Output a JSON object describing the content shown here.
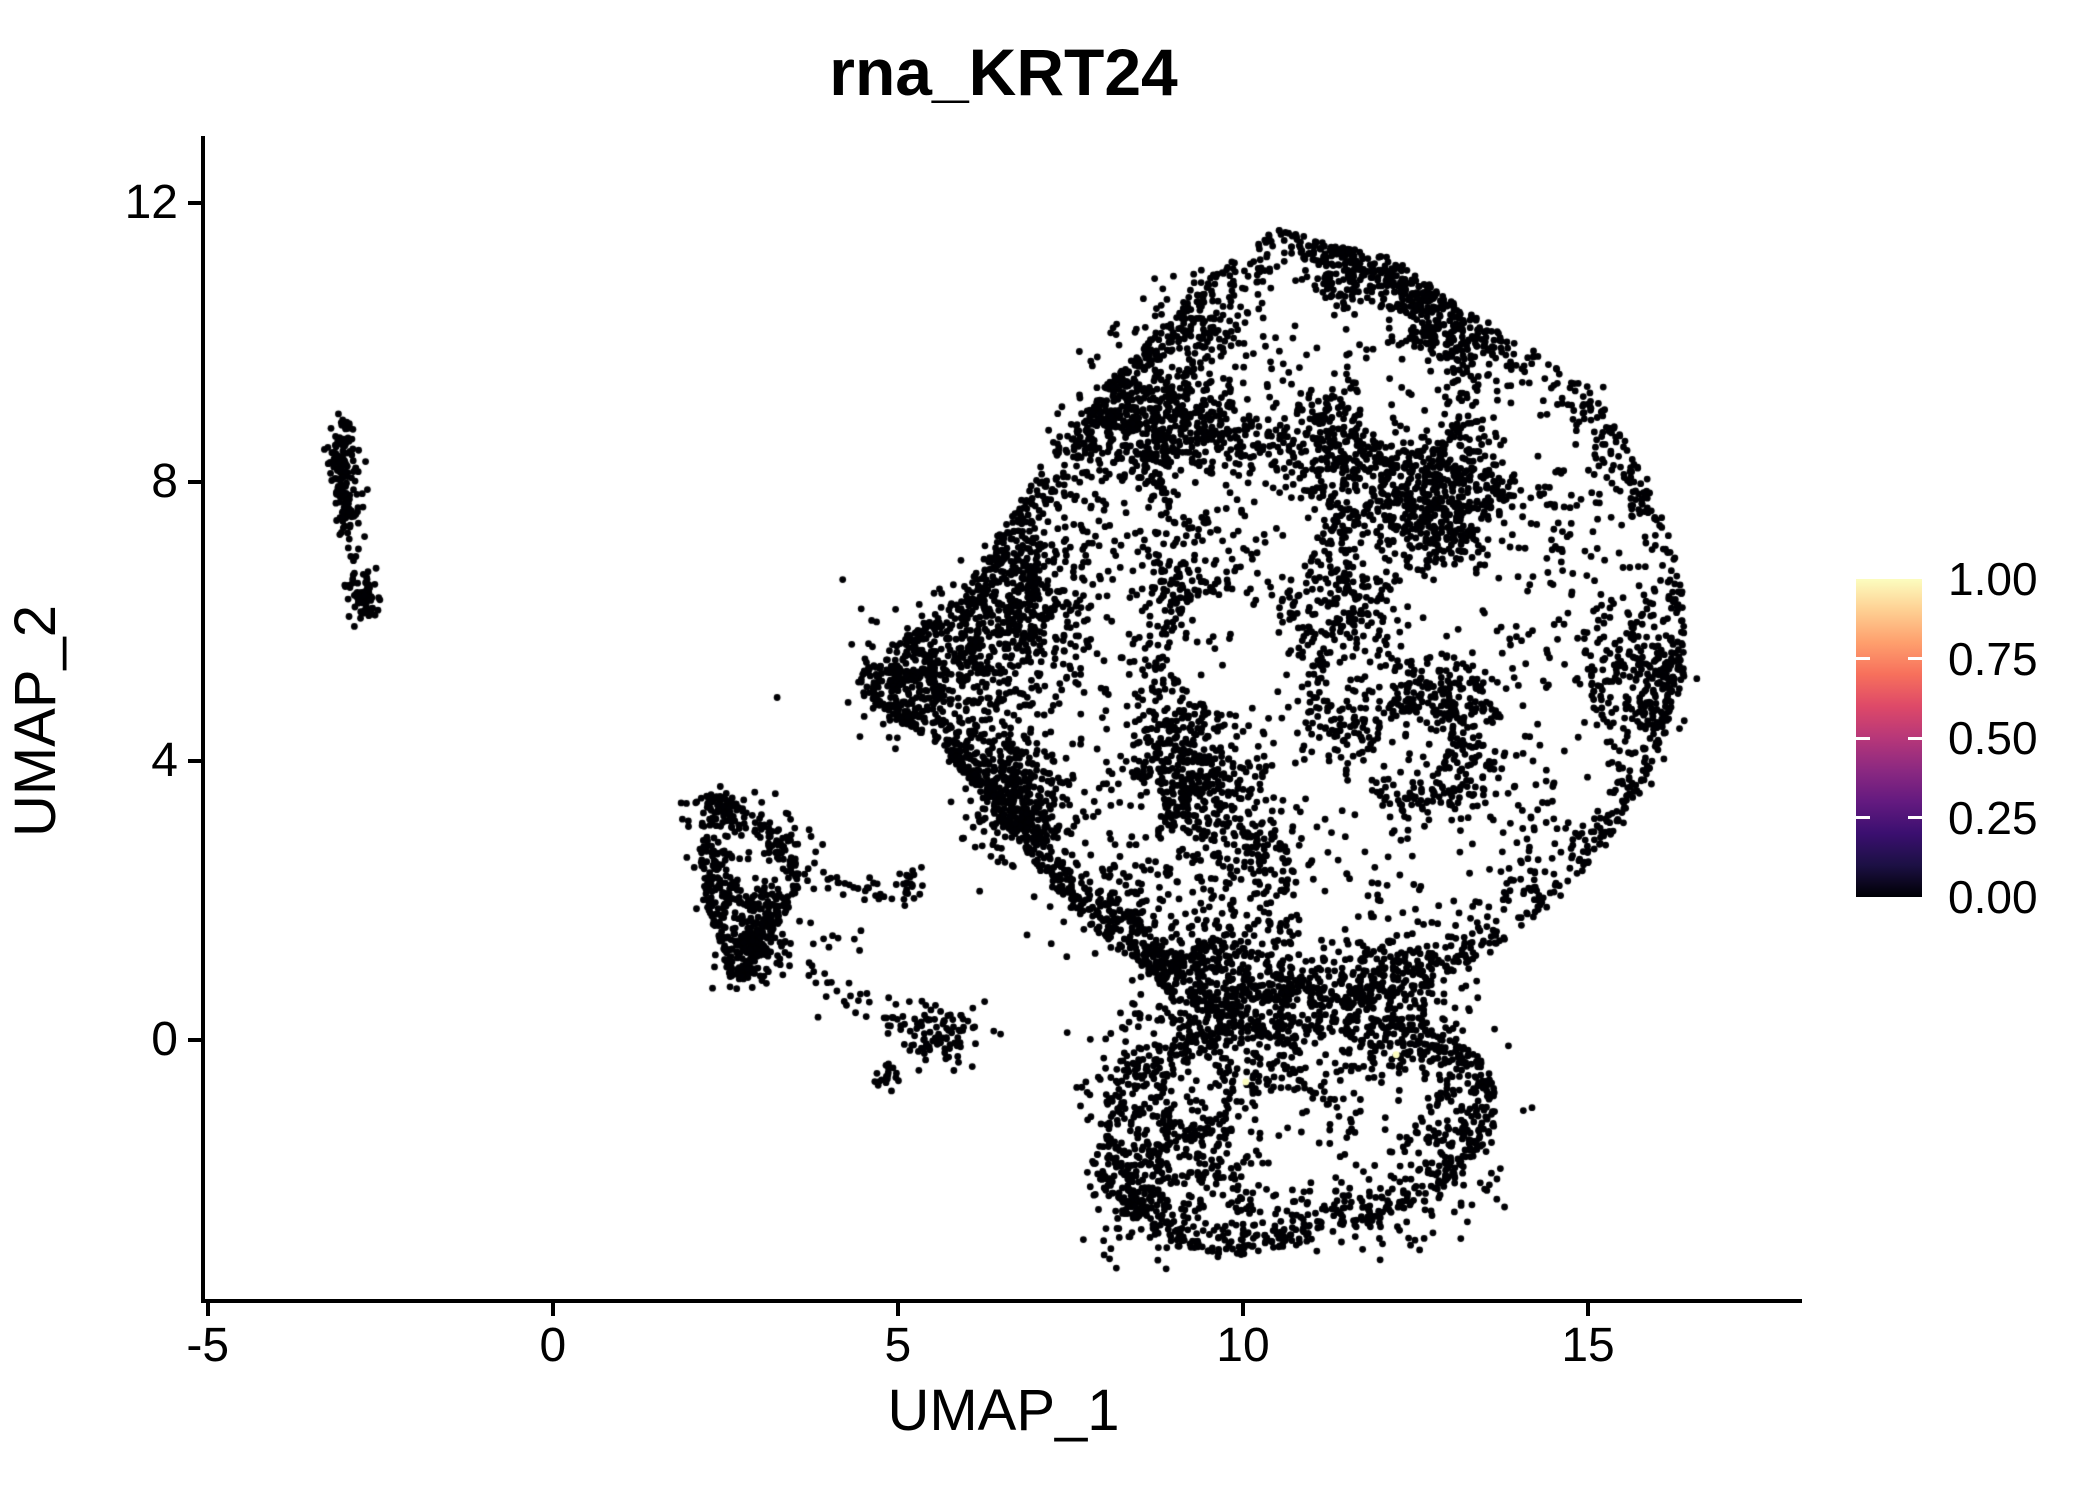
{
  "figure": {
    "title": "rna_KRT24"
  },
  "axes": {
    "x": {
      "label": "UMAP_1",
      "ticks": [
        -5,
        0,
        5,
        10,
        15
      ],
      "range": [
        -5.04,
        18.1
      ]
    },
    "y": {
      "label": "UMAP_2",
      "ticks": [
        0,
        4,
        8,
        12
      ],
      "range": [
        -3.74,
        12.93
      ]
    }
  },
  "legend": {
    "labels": [
      "1.00",
      "0.75",
      "0.50",
      "0.25",
      "0.00"
    ],
    "tick_values": [
      0.75,
      0.5,
      0.25
    ],
    "colormap": "magma",
    "gradient_stops": [
      {
        "v": 0.0,
        "c": "#000004"
      },
      {
        "v": 0.1,
        "c": "#1c1044"
      },
      {
        "v": 0.2,
        "c": "#3b0f70"
      },
      {
        "v": 0.3,
        "c": "#641a80"
      },
      {
        "v": 0.4,
        "c": "#8c2981"
      },
      {
        "v": 0.5,
        "c": "#b73779"
      },
      {
        "v": 0.6,
        "c": "#de4968"
      },
      {
        "v": 0.7,
        "c": "#f7705c"
      },
      {
        "v": 0.8,
        "c": "#fe9f6d"
      },
      {
        "v": 0.9,
        "c": "#fecf92"
      },
      {
        "v": 1.0,
        "c": "#fcfdbf"
      }
    ]
  },
  "chart_data": {
    "type": "scatter",
    "title": "rna_KRT24",
    "xlabel": "UMAP_1",
    "ylabel": "UMAP_2",
    "xlim": [
      -5.04,
      18.1
    ],
    "ylim": [
      -3.74,
      12.93
    ],
    "grid": false,
    "legend_position": "right",
    "n_points_approx": 10600,
    "description": "UMAP feature plot; nearly all cells have expression 0 (black, magma colormap minimum); two cells near (12.2,-0.2) and (10.0,-0.6) show expression ~1 (pale yellow).",
    "point_color": "#000004",
    "point_radius_px": 3.4,
    "generator": {
      "seed": 1337,
      "regions": [
        {
          "name": "main-blob",
          "poly": [
            [
              10.55,
              11.7
            ],
            [
              11.3,
              11.4
            ],
            [
              12.1,
              11.25
            ],
            [
              13.2,
              10.5
            ],
            [
              14.2,
              9.9
            ],
            [
              15.1,
              9.3
            ],
            [
              15.75,
              8.4
            ],
            [
              16.2,
              7.3
            ],
            [
              16.45,
              6.2
            ],
            [
              16.4,
              5.2
            ],
            [
              16.0,
              4.0
            ],
            [
              15.4,
              2.9
            ],
            [
              14.5,
              1.9
            ],
            [
              13.5,
              1.2
            ],
            [
              12.5,
              0.7
            ],
            [
              11.5,
              0.45
            ],
            [
              10.5,
              0.5
            ],
            [
              9.7,
              0.25
            ],
            [
              9.0,
              0.55
            ],
            [
              8.5,
              1.1
            ],
            [
              7.9,
              1.5
            ],
            [
              7.3,
              2.1
            ],
            [
              6.7,
              2.85
            ],
            [
              6.15,
              3.6
            ],
            [
              5.5,
              4.3
            ],
            [
              4.6,
              4.75
            ],
            [
              4.35,
              5.2
            ],
            [
              4.9,
              5.65
            ],
            [
              5.6,
              6.1
            ],
            [
              6.2,
              6.8
            ],
            [
              6.7,
              7.7
            ],
            [
              7.3,
              8.6
            ],
            [
              8.0,
              9.4
            ],
            [
              8.8,
              10.2
            ],
            [
              9.7,
              11.1
            ]
          ],
          "fill": 5000,
          "edge": 1150,
          "edge_sd": 0.28,
          "noise": {
            "base": 0.3,
            "gain": 0.85,
            "freq": 0.8
          },
          "holes": [
            [
              12.35,
              9.2,
              0.75,
              0.12
            ],
            [
              13.95,
              7.2,
              0.55,
              0.18
            ],
            [
              9.35,
              8.05,
              0.5,
              0.2
            ],
            [
              9.8,
              5.6,
              0.85,
              0.1
            ],
            [
              11.7,
              5.15,
              0.55,
              0.25
            ],
            [
              12.45,
              4.2,
              0.5,
              0.22
            ],
            [
              14.9,
              4.6,
              0.5,
              0.25
            ],
            [
              15.6,
              6.7,
              0.45,
              0.3
            ],
            [
              8.35,
              3.3,
              0.45,
              0.22
            ],
            [
              10.75,
              3.45,
              0.5,
              0.3
            ],
            [
              13.05,
              2.6,
              0.5,
              0.28
            ],
            [
              9.0,
              1.65,
              0.4,
              0.3
            ],
            [
              11.25,
              1.4,
              0.45,
              0.28
            ],
            [
              14.2,
              8.55,
              0.4,
              0.3
            ],
            [
              10.85,
              10.35,
              0.45,
              0.3
            ],
            [
              12.95,
              6.35,
              0.45,
              0.32
            ],
            [
              7.5,
              4.3,
              0.38,
              0.3
            ],
            [
              10.6,
              7.4,
              0.5,
              0.35
            ],
            [
              12.0,
              7.0,
              0.45,
              0.4
            ]
          ]
        },
        {
          "name": "bottom-lobe",
          "poly": [
            [
              9.6,
              0.2
            ],
            [
              8.9,
              0.0
            ],
            [
              8.3,
              -0.4
            ],
            [
              7.9,
              -1.0
            ],
            [
              7.75,
              -1.6
            ],
            [
              8.0,
              -2.2
            ],
            [
              8.5,
              -2.7
            ],
            [
              9.2,
              -3.0
            ],
            [
              10.0,
              -3.1
            ],
            [
              10.8,
              -2.95
            ],
            [
              11.6,
              -2.7
            ],
            [
              12.4,
              -2.45
            ],
            [
              13.1,
              -2.0
            ],
            [
              13.6,
              -1.4
            ],
            [
              13.75,
              -0.8
            ],
            [
              13.5,
              -0.3
            ],
            [
              12.9,
              0.1
            ],
            [
              12.2,
              0.35
            ],
            [
              11.2,
              0.3
            ],
            [
              10.4,
              0.35
            ]
          ],
          "fill": 800,
          "edge": 300,
          "edge_sd": 0.22,
          "noise": {
            "base": 0.3,
            "gain": 0.8,
            "freq": 1.0
          },
          "holes": [
            [
              10.6,
              -1.5,
              0.8,
              0.15
            ],
            [
              12.2,
              -0.95,
              0.5,
              0.25
            ],
            [
              9.3,
              -0.75,
              0.4,
              0.35
            ],
            [
              11.35,
              -0.35,
              0.45,
              0.3
            ]
          ]
        },
        {
          "name": "left-mid-cluster",
          "poly": [
            [
              2.25,
              3.5
            ],
            [
              2.7,
              3.45
            ],
            [
              3.05,
              3.1
            ],
            [
              3.55,
              2.6
            ],
            [
              3.6,
              2.2
            ],
            [
              3.3,
              1.7
            ],
            [
              3.1,
              1.2
            ],
            [
              2.85,
              0.85
            ],
            [
              2.55,
              0.95
            ],
            [
              2.4,
              1.4
            ],
            [
              2.2,
              2.0
            ],
            [
              2.1,
              2.7
            ],
            [
              2.15,
              3.2
            ]
          ],
          "fill": 300,
          "edge": 90,
          "edge_sd": 0.12,
          "noise": {
            "base": 0.35,
            "gain": 0.8,
            "freq": 1.6
          },
          "holes": [
            [
              2.85,
              2.45,
              0.3,
              0.15
            ],
            [
              2.6,
              1.7,
              0.25,
              0.3
            ]
          ]
        }
      ],
      "clumps": [
        [
          6.05,
          5.35,
          0.7,
          0.55,
          330
        ],
        [
          7.05,
          6.35,
          0.45,
          0.5,
          140
        ],
        [
          5.2,
          5.1,
          0.33,
          0.28,
          110
        ],
        [
          8.45,
          8.6,
          0.5,
          0.6,
          140
        ],
        [
          9.35,
          10.15,
          0.5,
          0.45,
          120
        ],
        [
          12.9,
          8.25,
          0.6,
          0.5,
          120
        ],
        [
          15.55,
          5.2,
          0.42,
          0.6,
          120
        ],
        [
          9.9,
          2.6,
          0.6,
          0.45,
          140
        ],
        [
          10.9,
          0.8,
          0.9,
          0.35,
          190
        ],
        [
          9.35,
          0.3,
          0.5,
          0.3,
          130
        ],
        [
          12.3,
          0.45,
          0.6,
          0.3,
          110
        ],
        [
          8.0,
          2.0,
          0.45,
          0.4,
          100
        ],
        [
          6.6,
          3.4,
          0.45,
          0.45,
          110
        ],
        [
          8.7,
          -2.3,
          0.5,
          0.45,
          110
        ],
        [
          9.5,
          -1.6,
          0.45,
          0.5,
          90
        ],
        [
          12.95,
          -1.75,
          0.4,
          0.5,
          90
        ],
        [
          11.6,
          -2.55,
          0.7,
          0.3,
          90
        ],
        [
          8.3,
          -0.9,
          0.35,
          0.5,
          80
        ],
        [
          2.5,
          3.25,
          0.22,
          0.18,
          55
        ],
        [
          2.35,
          2.6,
          0.18,
          0.25,
          45
        ],
        [
          2.95,
          1.5,
          0.28,
          0.22,
          60
        ],
        [
          3.3,
          2.85,
          0.22,
          0.2,
          40
        ],
        [
          2.8,
          1.0,
          0.22,
          0.15,
          35
        ],
        [
          5.15,
          2.2,
          0.16,
          0.13,
          22
        ],
        [
          5.6,
          0.12,
          0.33,
          0.23,
          95
        ],
        [
          4.85,
          -0.5,
          0.13,
          0.1,
          20
        ],
        [
          -2.78,
          6.4,
          0.12,
          0.2,
          60
        ],
        [
          -2.62,
          6.15,
          0.08,
          0.08,
          12
        ]
      ],
      "strands": [
        [
          3.55,
          2.35,
          5.0,
          2.1,
          32,
          0.11
        ],
        [
          3.3,
          1.2,
          4.35,
          0.45,
          22,
          0.14
        ],
        [
          4.5,
          0.6,
          5.1,
          0.2,
          14,
          0.12
        ],
        [
          3.8,
          1.75,
          4.5,
          1.3,
          8,
          0.2
        ],
        [
          -3.02,
          8.85,
          -2.93,
          7.3,
          115,
          0.1
        ],
        [
          -3.15,
          8.6,
          -3.05,
          7.6,
          45,
          0.07
        ],
        [
          -2.95,
          7.25,
          -2.88,
          6.85,
          7,
          0.05
        ]
      ],
      "extra_points": [
        [
          15.22,
          9.36
        ],
        [
          3.25,
          4.91
        ],
        [
          4.2,
          6.6
        ],
        [
          4.45,
          4.35
        ]
      ],
      "highlight_points": {
        "color": "#fcfdbf",
        "points": [
          [
            12.22,
            -0.21
          ],
          [
            10.04,
            -0.6
          ]
        ]
      }
    }
  }
}
